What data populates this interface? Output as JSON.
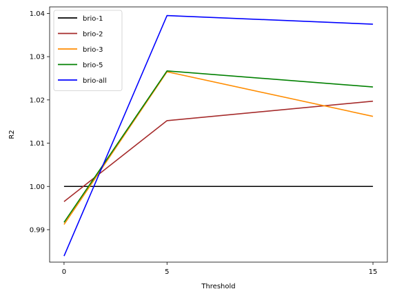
{
  "chart_data": {
    "type": "line",
    "title": "",
    "xlabel": "Threshold",
    "ylabel": "R2",
    "x": [
      0,
      5,
      15
    ],
    "x_tick_labels": [
      "0",
      "5",
      "15"
    ],
    "y_ticks": [
      0.99,
      1.0,
      1.01,
      1.02,
      1.03,
      1.04
    ],
    "y_tick_labels": [
      "0.99",
      "1.00",
      "1.01",
      "1.02",
      "1.03",
      "1.04"
    ],
    "ylim": [
      0.9825,
      1.0415
    ],
    "grid": false,
    "legend_position": "top-left",
    "series": [
      {
        "name": "brio-1",
        "color": "#000000",
        "values": [
          1.0,
          1.0,
          1.0
        ]
      },
      {
        "name": "brio-2",
        "color": "#a52a2a",
        "values": [
          0.9965,
          1.0152,
          1.0197
        ]
      },
      {
        "name": "brio-3",
        "color": "#ff8c00",
        "values": [
          0.9912,
          1.0265,
          1.0162
        ]
      },
      {
        "name": "brio-5",
        "color": "#008000",
        "values": [
          0.9917,
          1.0267,
          1.023
        ]
      },
      {
        "name": "brio-all",
        "color": "#0000ff",
        "values": [
          0.9839,
          1.0395,
          1.0375
        ]
      }
    ]
  }
}
